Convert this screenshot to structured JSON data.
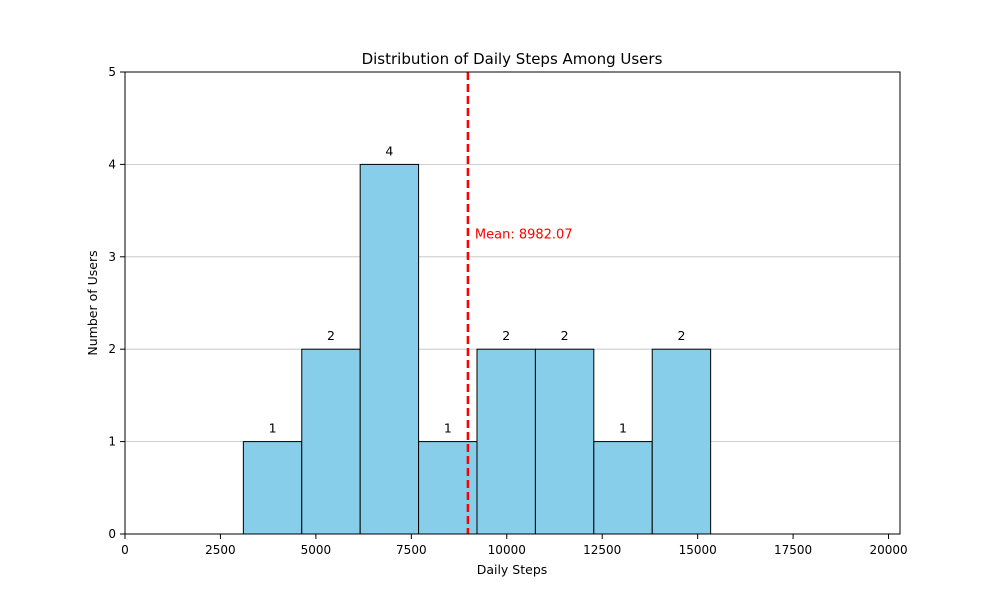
{
  "chart_data": {
    "type": "bar",
    "title": "Distribution of Daily Steps Among Users",
    "xlabel": "Daily Steps",
    "ylabel": "Number of Users",
    "xlim": [
      0,
      20300
    ],
    "ylim": [
      0,
      5
    ],
    "xticks": [
      0,
      2500,
      5000,
      7500,
      10000,
      12500,
      15000,
      17500,
      20000
    ],
    "yticks": [
      0,
      1,
      2,
      3,
      4,
      5
    ],
    "grid": "y",
    "bins": [
      {
        "start": 3100,
        "end": 4630,
        "count": 1
      },
      {
        "start": 4630,
        "end": 6160,
        "count": 2
      },
      {
        "start": 6160,
        "end": 7690,
        "count": 4
      },
      {
        "start": 7690,
        "end": 9220,
        "count": 1
      },
      {
        "start": 9220,
        "end": 10750,
        "count": 2
      },
      {
        "start": 10750,
        "end": 12280,
        "count": 2
      },
      {
        "start": 12280,
        "end": 13810,
        "count": 1
      },
      {
        "start": 13810,
        "end": 15340,
        "count": 2
      }
    ],
    "mean": 8982.07,
    "mean_label": "Mean: 8982.07",
    "colors": {
      "bar": "#87ceeb",
      "edge": "#000000",
      "mean_line": "#ff0000",
      "grid": "#c0c0c0"
    }
  }
}
